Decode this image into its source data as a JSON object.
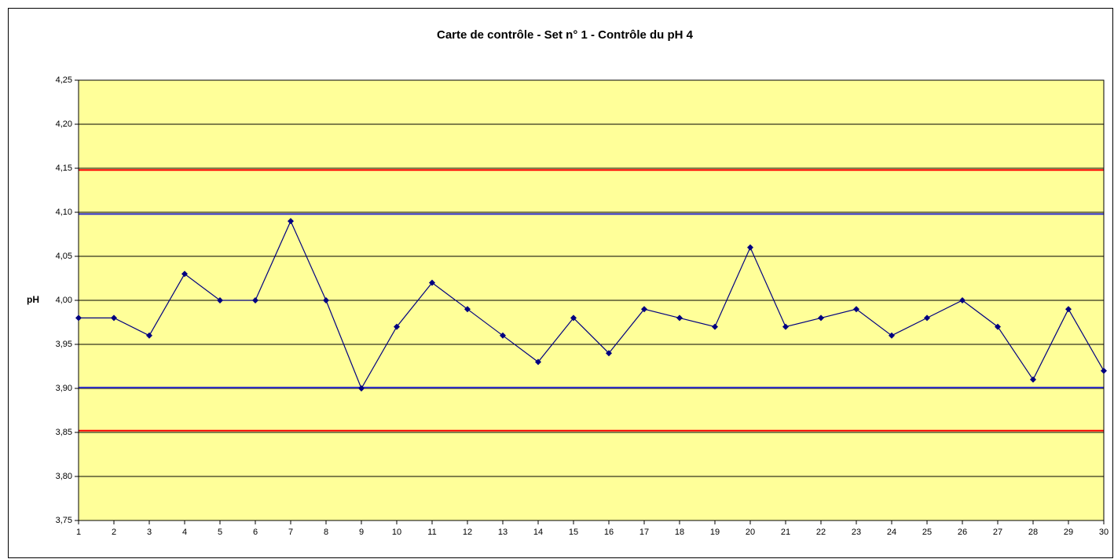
{
  "chart_data": {
    "type": "line",
    "title": "Carte de contrôle - Set n° 1 - Contrôle du pH 4",
    "y_label": "pH",
    "x": [
      1,
      2,
      3,
      4,
      5,
      6,
      7,
      8,
      9,
      10,
      11,
      12,
      13,
      14,
      15,
      16,
      17,
      18,
      19,
      20,
      21,
      22,
      23,
      24,
      25,
      26,
      27,
      28,
      29,
      30
    ],
    "series": [
      {
        "color": "#000080",
        "values": [
          3.98,
          3.98,
          3.96,
          4.03,
          4.0,
          4.0,
          4.09,
          4.0,
          3.9,
          3.97,
          4.02,
          3.99,
          3.96,
          3.93,
          3.98,
          3.94,
          3.99,
          3.98,
          3.97,
          4.06,
          3.97,
          3.98,
          3.99,
          3.96,
          3.98,
          4.0,
          3.97,
          3.91,
          3.99,
          3.92
        ]
      }
    ],
    "reference_lines": [
      {
        "value": 4.148,
        "color": "#ff0000"
      },
      {
        "value": 4.098,
        "color": "#3333cc"
      },
      {
        "value": 3.901,
        "color": "#3333cc"
      },
      {
        "value": 3.852,
        "color": "#ff0000"
      }
    ],
    "xlim": [
      1,
      30
    ],
    "xticks": [
      1,
      2,
      3,
      4,
      5,
      6,
      7,
      8,
      9,
      10,
      11,
      12,
      13,
      14,
      15,
      16,
      17,
      18,
      19,
      20,
      21,
      22,
      23,
      24,
      25,
      26,
      27,
      28,
      29,
      30
    ],
    "ylim": [
      3.75,
      4.25
    ],
    "yticks": [
      {
        "value": 3.75,
        "label": "3,75"
      },
      {
        "value": 3.8,
        "label": "3,80"
      },
      {
        "value": 3.85,
        "label": "3,85"
      },
      {
        "value": 3.9,
        "label": "3,90"
      },
      {
        "value": 3.95,
        "label": "3,95"
      },
      {
        "value": 4.0,
        "label": "4,00"
      },
      {
        "value": 4.05,
        "label": "4,05"
      },
      {
        "value": 4.1,
        "label": "4,10"
      },
      {
        "value": 4.15,
        "label": "4,15"
      },
      {
        "value": 4.2,
        "label": "4,20"
      },
      {
        "value": 4.25,
        "label": "4,25"
      }
    ],
    "grid": true,
    "plot_background": "#ffff99"
  }
}
